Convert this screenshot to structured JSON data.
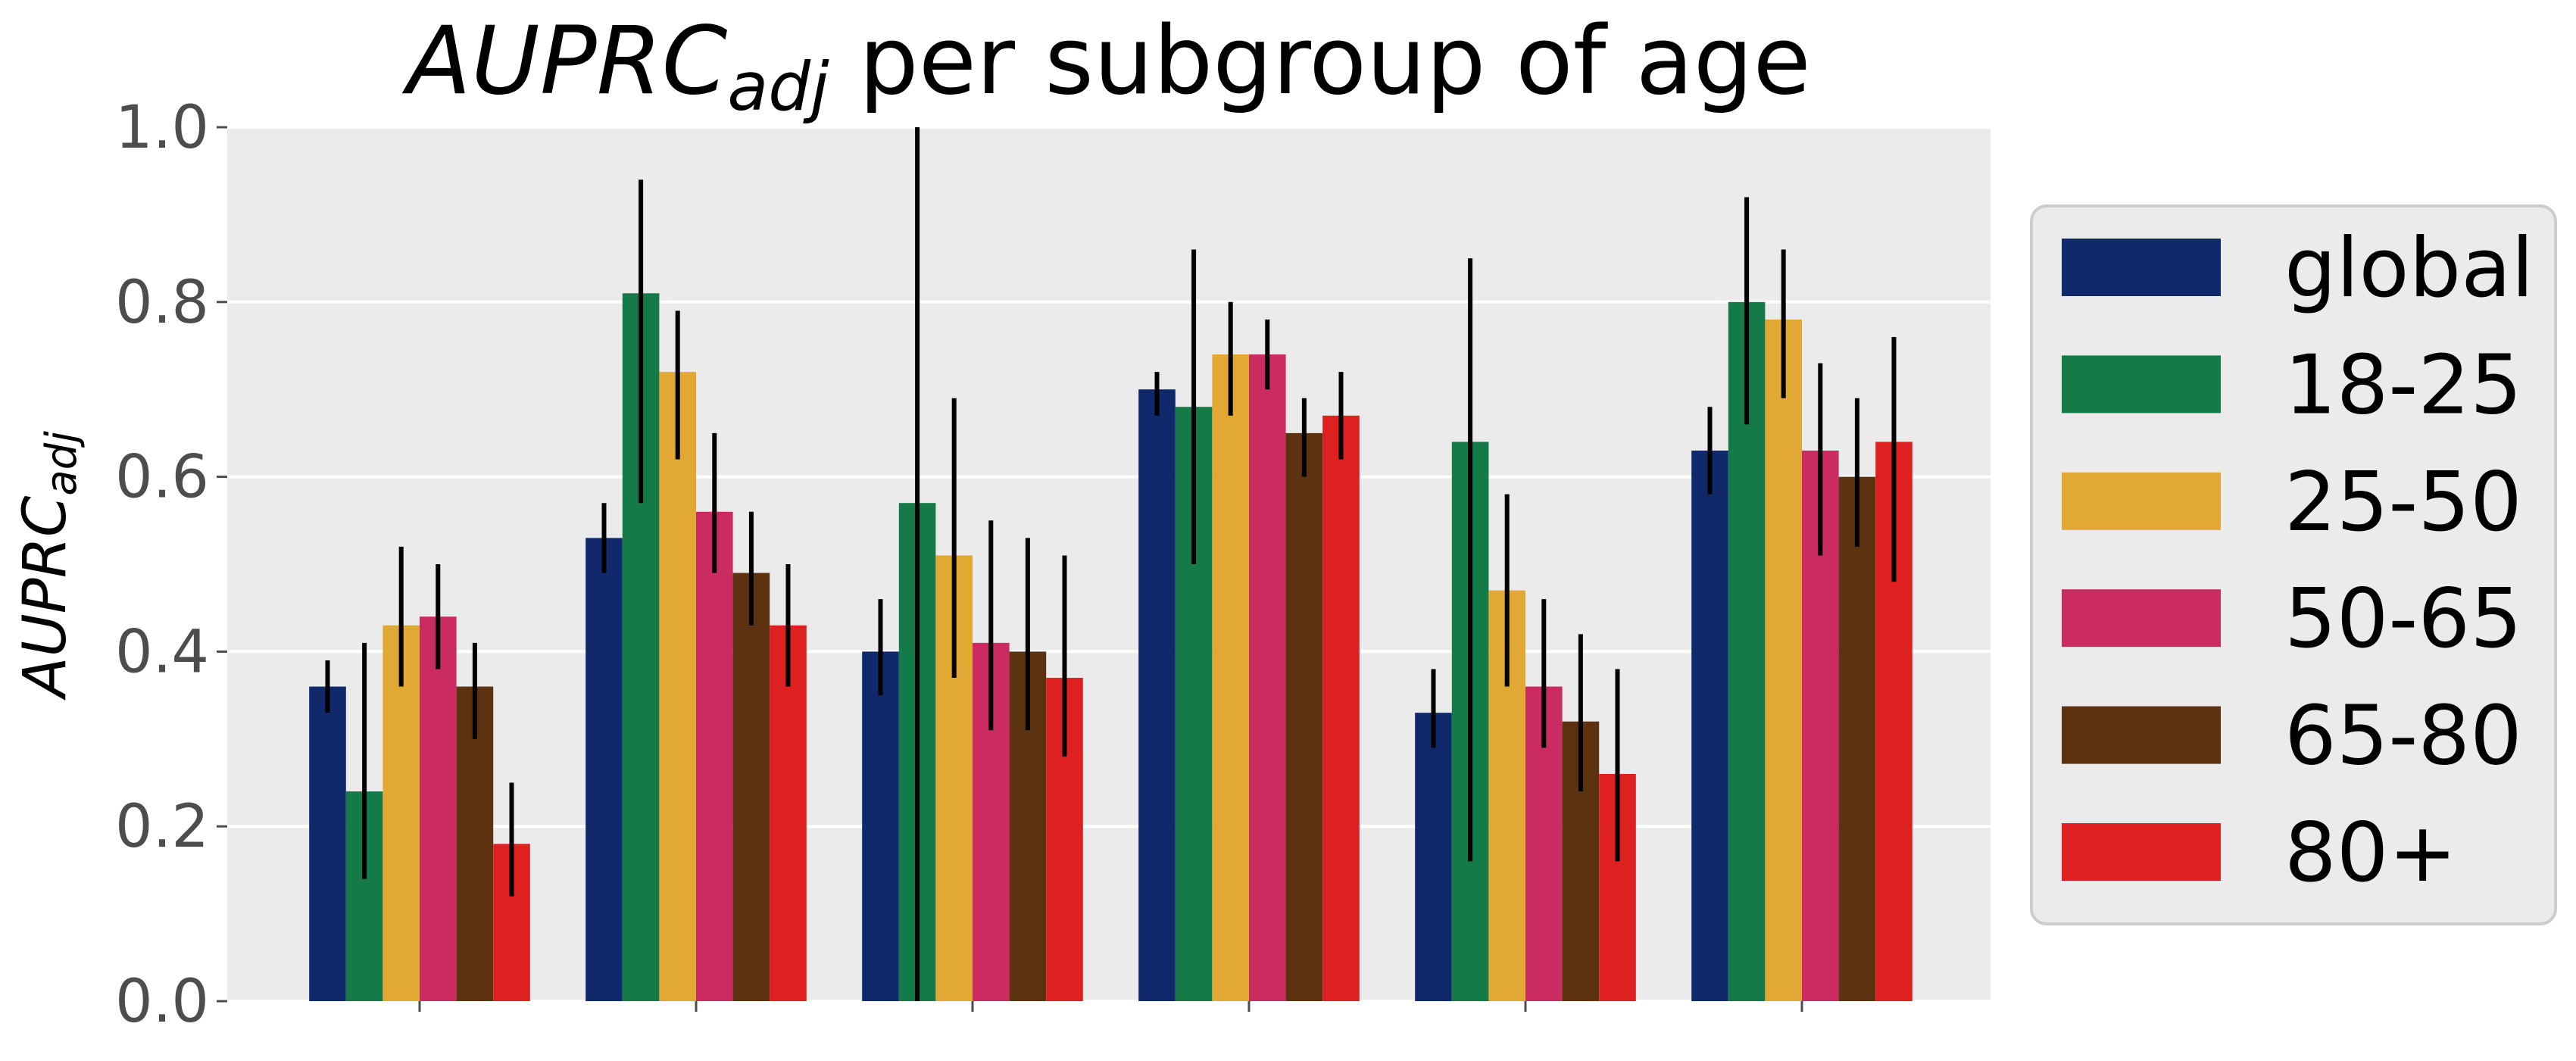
{
  "chart_data": {
    "type": "bar",
    "title": "AUPRC",
    "title_sub": "adj",
    "title_rest": " per subgroup of age",
    "ylabel": "AUPRC",
    "ylabel_sub": "adj",
    "ylim": [
      0,
      1
    ],
    "yticks": [
      "0.0",
      "0.2",
      "0.4",
      "0.6",
      "0.8",
      "1.0"
    ],
    "grid": true,
    "legend_position": "right",
    "categories": [
      "",
      "",
      "",
      "",
      "",
      ""
    ],
    "series": [
      {
        "name": "global",
        "color": "#10296a",
        "values": [
          0.36,
          0.53,
          0.4,
          0.7,
          0.33,
          0.63
        ],
        "err_low": [
          0.33,
          0.49,
          0.35,
          0.67,
          0.29,
          0.58
        ],
        "err_high": [
          0.39,
          0.57,
          0.46,
          0.72,
          0.38,
          0.68
        ]
      },
      {
        "name": "18-25",
        "color": "#137a48",
        "values": [
          0.24,
          0.81,
          0.57,
          0.68,
          0.64,
          0.8
        ],
        "err_low": [
          0.14,
          0.57,
          0.0,
          0.5,
          0.16,
          0.66
        ],
        "err_high": [
          0.41,
          0.94,
          1.05,
          0.86,
          0.85,
          0.92
        ]
      },
      {
        "name": "25-50",
        "color": "#e1a934",
        "values": [
          0.43,
          0.72,
          0.51,
          0.74,
          0.47,
          0.78
        ],
        "err_low": [
          0.36,
          0.62,
          0.37,
          0.67,
          0.36,
          0.69
        ],
        "err_high": [
          0.52,
          0.79,
          0.69,
          0.8,
          0.58,
          0.86
        ]
      },
      {
        "name": "50-65",
        "color": "#ca2b61",
        "values": [
          0.44,
          0.56,
          0.41,
          0.74,
          0.36,
          0.63
        ],
        "err_low": [
          0.38,
          0.49,
          0.31,
          0.7,
          0.29,
          0.51
        ],
        "err_high": [
          0.5,
          0.65,
          0.55,
          0.78,
          0.46,
          0.73
        ]
      },
      {
        "name": "65-80",
        "color": "#5c3211",
        "values": [
          0.36,
          0.49,
          0.4,
          0.65,
          0.32,
          0.6
        ],
        "err_low": [
          0.3,
          0.43,
          0.31,
          0.6,
          0.24,
          0.52
        ],
        "err_high": [
          0.41,
          0.56,
          0.53,
          0.69,
          0.42,
          0.69
        ]
      },
      {
        "name": "80+",
        "color": "#df2020",
        "values": [
          0.18,
          0.43,
          0.37,
          0.67,
          0.26,
          0.64
        ],
        "err_low": [
          0.12,
          0.36,
          0.28,
          0.62,
          0.16,
          0.48
        ],
        "err_high": [
          0.25,
          0.5,
          0.51,
          0.72,
          0.38,
          0.76
        ]
      }
    ]
  },
  "colors": {
    "plot_background": "#ebebeb",
    "grid": "#ffffff",
    "error_bar": "#000000",
    "legend_background": "#ebebeb",
    "legend_border": "#cccccc"
  }
}
